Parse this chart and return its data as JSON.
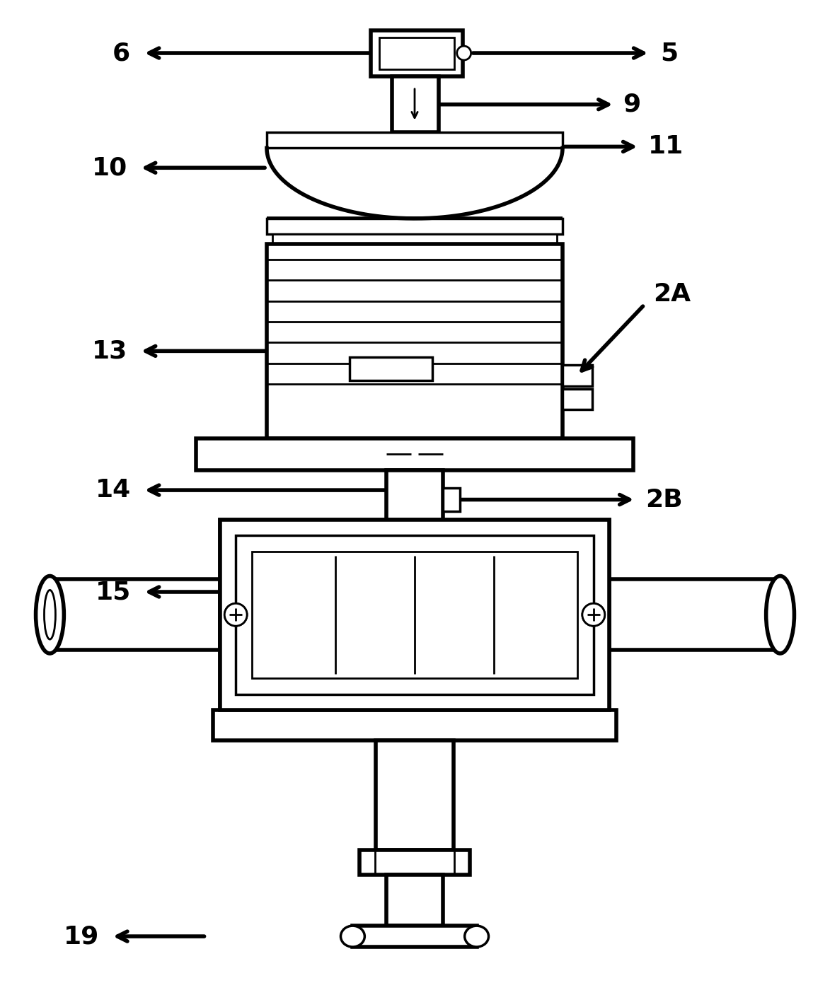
{
  "bg_color": "#ffffff",
  "line_color": "#000000",
  "fig_width": 11.73,
  "fig_height": 14.24,
  "dpi": 100
}
